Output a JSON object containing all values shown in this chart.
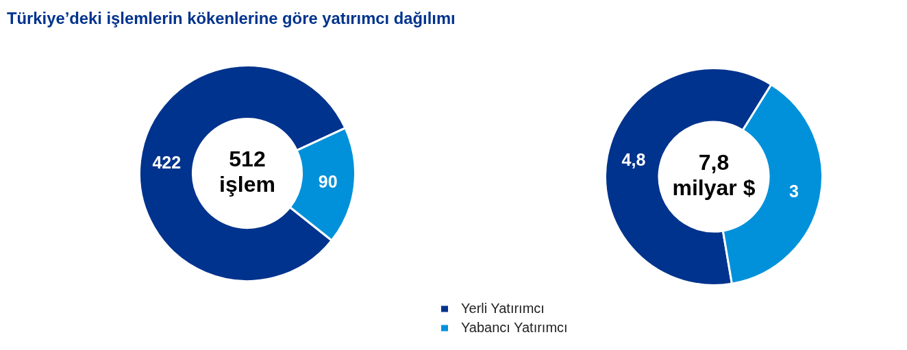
{
  "chart_data": [
    {
      "type": "donut",
      "title": "Türkiye’deki işlemlerin kökenlerine göre yatırımcı dağılımı",
      "categories": [
        "Yerli Yatırımcı",
        "Yabancı Yatırımcı"
      ],
      "values": [
        422,
        90
      ],
      "colors": [
        "#00338d",
        "#0091da"
      ],
      "data_labels": true,
      "annotations": [
        "512 işlem"
      ],
      "legend": "bottom right"
    },
    {
      "type": "donut",
      "categories": [
        null,
        null
      ],
      "values": [
        4.8,
        3
      ],
      "colors": [
        "#00338d",
        "#0091da"
      ],
      "value_labels": [
        "4,8",
        "3"
      ],
      "annotations": [
        "7,8 milyar $"
      ]
    }
  ]
}
